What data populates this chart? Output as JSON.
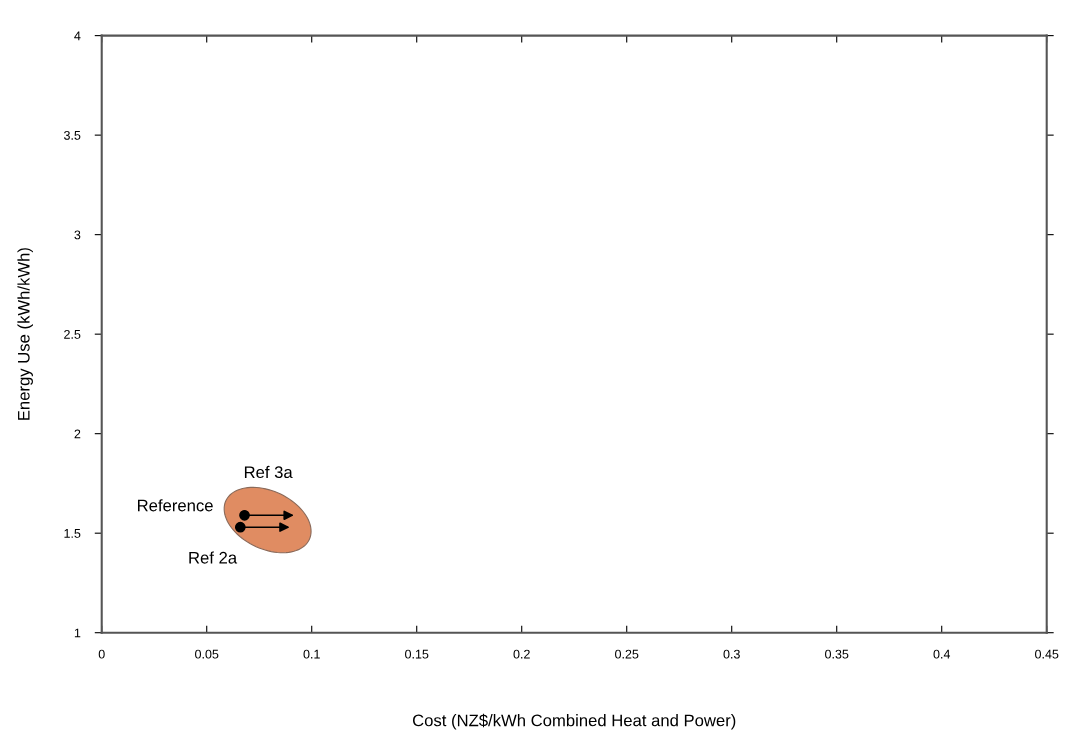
{
  "chart_data": {
    "type": "scatter",
    "xlabel": "Cost (NZ$/kWh Combined Heat and Power)",
    "ylabel": "Energy Use (kWh/kWh)",
    "xlim": [
      0,
      0.45
    ],
    "xticks": [
      0,
      0.05,
      0.1,
      0.15,
      0.2,
      0.25,
      0.3,
      0.35,
      0.4,
      0.45
    ],
    "ylim": [
      1,
      4
    ],
    "yticks": [
      1,
      1.5,
      2,
      2.5,
      3,
      3.5,
      4
    ],
    "grid": false,
    "legend": false,
    "series": [
      {
        "color": "#000000",
        "marker": "circle",
        "x": [
          0.068,
          0.066
        ],
        "values": [
          1.59,
          1.53
        ]
      }
    ],
    "annotations": [
      "Ref 3a",
      {
        "text": "Reference",
        "x": 0.068,
        "y": 1.59
      },
      {
        "text": "Ref 2a",
        "x": 0.066,
        "y": 1.53
      }
    ]
  }
}
